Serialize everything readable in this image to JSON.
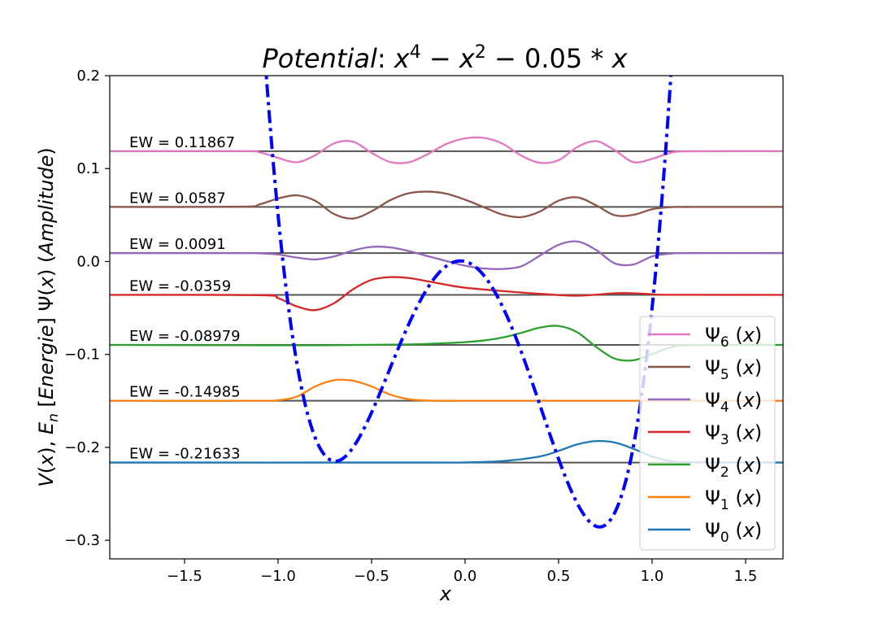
{
  "chart_data": {
    "type": "line",
    "title": "Potential:   x^4 - x^2 - 0.05 * x",
    "xlabel": "x",
    "ylabel": "V(x),  E_n [Energie]          Ψ(x) (Amplitude)",
    "xlim": [
      -1.9,
      1.7
    ],
    "ylim": [
      -0.32,
      0.2
    ],
    "xticks": [
      -1.5,
      -1.0,
      -0.5,
      0.0,
      0.5,
      1.0,
      1.5
    ],
    "xtick_labels": [
      "−1.5",
      "−1.0",
      "−0.5",
      "0.0",
      "0.5",
      "1.0",
      "1.5"
    ],
    "yticks": [
      0.2,
      0.1,
      0.0,
      -0.1,
      -0.2,
      -0.3
    ],
    "ytick_labels": [
      "0.2",
      "0.1",
      "0.0",
      "−0.1",
      "−0.2",
      "−0.3"
    ],
    "grid": false,
    "legend_position": "lower-right",
    "potential": {
      "formula": "x^4 - x^2 - 0.05*x",
      "color": "#0000ff",
      "linestyle": "dash-dot"
    },
    "levels": [
      {
        "n": 0,
        "energy": -0.21633,
        "label": "EW = -0.21633",
        "legend": "Ψ₀ (x)",
        "color": "#1f77b4"
      },
      {
        "n": 1,
        "energy": -0.14985,
        "label": "EW = -0.14985",
        "legend": "Ψ₁ (x)",
        "color": "#ff7f0e"
      },
      {
        "n": 2,
        "energy": -0.08979,
        "label": "EW = -0.08979",
        "legend": "Ψ₂ (x)",
        "color": "#2ca02c"
      },
      {
        "n": 3,
        "energy": -0.0359,
        "label": "EW = -0.0359",
        "legend": "Ψ₃ (x)",
        "color": "#d62728"
      },
      {
        "n": 4,
        "energy": 0.0091,
        "label": "EW = 0.0091",
        "legend": "Ψ₄ (x)",
        "color": "#9467bd"
      },
      {
        "n": 5,
        "energy": 0.0587,
        "label": "EW = 0.0587",
        "legend": "Ψ₅ (x)",
        "color": "#8c564b"
      },
      {
        "n": 6,
        "energy": 0.11867,
        "label": "EW = 0.11867",
        "legend": "Ψ₆ (x)",
        "color": "#e377c2"
      }
    ],
    "wavefunctions": [
      {
        "n": 0,
        "x": [
          -1.9,
          -0.2,
          0.0,
          0.2,
          0.4,
          0.5,
          0.6,
          0.7,
          0.8,
          0.9,
          1.0,
          1.1,
          1.2,
          1.7
        ],
        "y": [
          -0.21633,
          -0.21633,
          -0.2162,
          -0.2148,
          -0.2098,
          -0.2038,
          -0.1968,
          -0.1933,
          -0.1948,
          -0.2015,
          -0.2098,
          -0.2148,
          -0.2161,
          -0.21633
        ]
      },
      {
        "n": 1,
        "x": [
          -1.9,
          -1.1,
          -1.0,
          -0.9,
          -0.8,
          -0.7,
          -0.6,
          -0.5,
          -0.4,
          -0.3,
          -0.2,
          -0.1,
          0.0,
          1.7
        ],
        "y": [
          -0.14985,
          -0.14985,
          -0.1493,
          -0.1455,
          -0.1343,
          -0.1277,
          -0.1283,
          -0.1345,
          -0.1432,
          -0.1482,
          -0.1496,
          -0.1499,
          -0.14985,
          -0.14985
        ]
      },
      {
        "n": 2,
        "x": [
          -1.9,
          -0.9,
          -0.6,
          -0.3,
          -0.1,
          0.0,
          0.1,
          0.2,
          0.3,
          0.4,
          0.5,
          0.6,
          0.7,
          0.8,
          0.9,
          1.0,
          1.1,
          1.2,
          1.7
        ],
        "y": [
          -0.08979,
          -0.0902,
          -0.0898,
          -0.0892,
          -0.0878,
          -0.0868,
          -0.085,
          -0.0818,
          -0.0768,
          -0.0712,
          -0.0694,
          -0.0762,
          -0.0918,
          -0.1045,
          -0.1063,
          -0.0995,
          -0.0925,
          -0.0902,
          -0.08979
        ]
      },
      {
        "n": 3,
        "x": [
          -1.9,
          -1.1,
          -1.0,
          -0.9,
          -0.8,
          -0.7,
          -0.6,
          -0.5,
          -0.4,
          -0.3,
          -0.2,
          -0.1,
          0.0,
          0.2,
          0.4,
          0.6,
          0.8,
          0.9,
          1.0,
          1.1,
          1.7
        ],
        "y": [
          -0.0359,
          -0.0362,
          -0.0395,
          -0.0483,
          -0.0523,
          -0.0448,
          -0.03,
          -0.0198,
          -0.0168,
          -0.0178,
          -0.0213,
          -0.025,
          -0.0282,
          -0.0318,
          -0.0348,
          -0.0368,
          -0.0342,
          -0.0342,
          -0.0352,
          -0.0358,
          -0.0359
        ]
      },
      {
        "n": 4,
        "x": [
          -1.9,
          -1.2,
          -1.1,
          -1.0,
          -0.9,
          -0.8,
          -0.7,
          -0.6,
          -0.5,
          -0.4,
          -0.3,
          -0.2,
          -0.1,
          0.0,
          0.1,
          0.2,
          0.3,
          0.4,
          0.5,
          0.6,
          0.7,
          0.8,
          0.9,
          1.0,
          1.1,
          1.2,
          1.7
        ],
        "y": [
          0.0091,
          0.0091,
          0.0088,
          0.0075,
          0.0042,
          0.0022,
          0.0055,
          0.0118,
          0.0157,
          0.0152,
          0.0112,
          0.0058,
          0.0005,
          -0.0045,
          -0.0075,
          -0.008,
          -0.0052,
          0.0063,
          0.018,
          0.0215,
          0.0125,
          -0.002,
          -0.0032,
          0.0055,
          0.0085,
          0.0091,
          0.0091
        ]
      },
      {
        "n": 5,
        "x": [
          -1.9,
          -1.2,
          -1.1,
          -1.0,
          -0.9,
          -0.8,
          -0.7,
          -0.6,
          -0.5,
          -0.4,
          -0.3,
          -0.2,
          -0.1,
          0.0,
          0.1,
          0.2,
          0.3,
          0.4,
          0.5,
          0.6,
          0.7,
          0.8,
          0.9,
          1.0,
          1.1,
          1.2,
          1.7
        ],
        "y": [
          0.0587,
          0.059,
          0.0615,
          0.0678,
          0.0712,
          0.0652,
          0.051,
          0.0462,
          0.054,
          0.066,
          0.0735,
          0.0752,
          0.073,
          0.0665,
          0.0585,
          0.0505,
          0.0478,
          0.0538,
          0.0655,
          0.069,
          0.0605,
          0.0498,
          0.0502,
          0.0562,
          0.0585,
          0.0587,
          0.0587
        ]
      },
      {
        "n": 6,
        "x": [
          -1.9,
          -1.2,
          -1.1,
          -1.0,
          -0.9,
          -0.8,
          -0.7,
          -0.6,
          -0.5,
          -0.4,
          -0.3,
          -0.2,
          -0.1,
          0.0,
          0.1,
          0.2,
          0.3,
          0.4,
          0.5,
          0.6,
          0.7,
          0.8,
          0.9,
          1.0,
          1.1,
          1.2,
          1.7
        ],
        "y": [
          0.11867,
          0.1188,
          0.1175,
          0.1115,
          0.1068,
          0.1145,
          0.1272,
          0.129,
          0.117,
          0.107,
          0.1068,
          0.1155,
          0.1265,
          0.1325,
          0.133,
          0.1268,
          0.114,
          0.1062,
          0.109,
          0.1232,
          0.1295,
          0.1198,
          0.107,
          0.1105,
          0.117,
          0.1186,
          0.11867
        ]
      }
    ]
  }
}
